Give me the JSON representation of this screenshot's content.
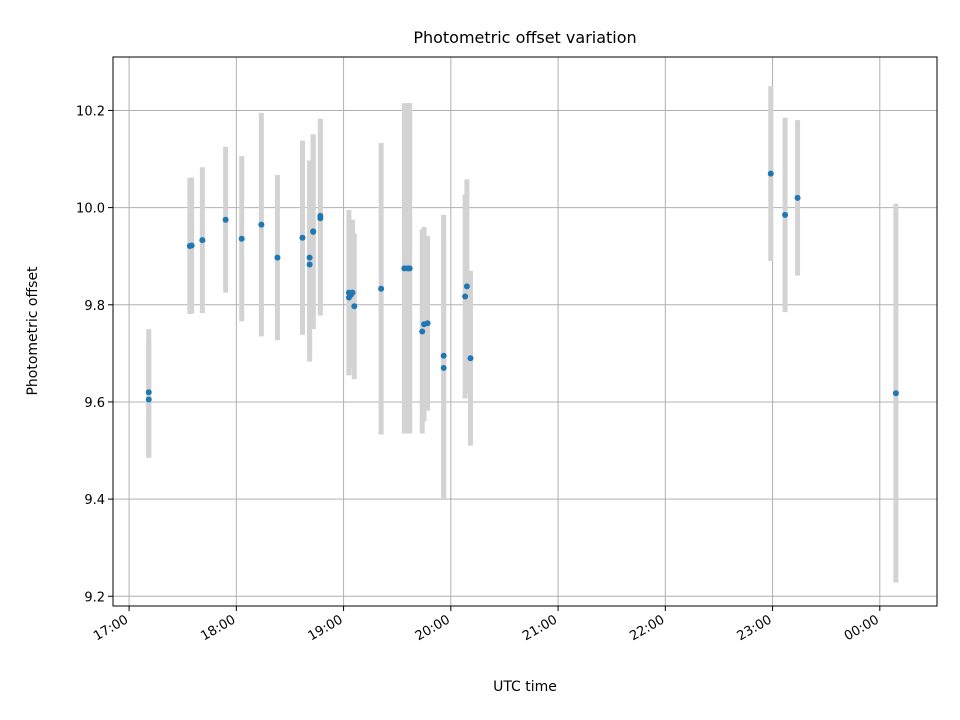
{
  "chart_data": {
    "type": "scatter",
    "title": "Photometric offset variation",
    "xlabel": "UTC time",
    "ylabel": "Photometric offset",
    "grid": true,
    "x_ticks": [
      "17:00",
      "18:00",
      "19:00",
      "20:00",
      "21:00",
      "22:00",
      "23:00",
      "00:00"
    ],
    "y_ticks": [
      "9.2",
      "9.4",
      "9.6",
      "9.8",
      "10.0",
      "10.2"
    ],
    "xlim": [
      "16:51",
      "00:32"
    ],
    "ylim": [
      9.18,
      10.31
    ],
    "colors": {
      "marker": "#1f77b4",
      "error_bar": "#d3d3d3",
      "grid": "#b0b0b0"
    },
    "series": [
      {
        "points": [
          {
            "x": "17:11",
            "y": 9.62,
            "err": 0.13
          },
          {
            "x": "17:11",
            "y": 9.605,
            "err": 0.12
          },
          {
            "x": "17:34",
            "y": 9.921,
            "err": 0.14
          },
          {
            "x": "17:35",
            "y": 9.922,
            "err": 0.14
          },
          {
            "x": "17:41",
            "y": 9.933,
            "err": 0.15
          },
          {
            "x": "17:54",
            "y": 9.975,
            "err": 0.15
          },
          {
            "x": "18:03",
            "y": 9.936,
            "err": 0.17
          },
          {
            "x": "18:14",
            "y": 9.965,
            "err": 0.23
          },
          {
            "x": "18:23",
            "y": 9.897,
            "err": 0.17
          },
          {
            "x": "18:37",
            "y": 9.938,
            "err": 0.2
          },
          {
            "x": "18:41",
            "y": 9.897,
            "err": 0.2
          },
          {
            "x": "18:41",
            "y": 9.883,
            "err": 0.2
          },
          {
            "x": "18:43",
            "y": 9.951,
            "err": 0.2
          },
          {
            "x": "18:43",
            "y": 9.95,
            "err": 0.2
          },
          {
            "x": "18:47",
            "y": 9.978,
            "err": 0.2
          },
          {
            "x": "18:47",
            "y": 9.983,
            "err": 0.2
          },
          {
            "x": "19:03",
            "y": 9.825,
            "err": 0.17
          },
          {
            "x": "19:03",
            "y": 9.815,
            "err": 0.16
          },
          {
            "x": "19:04",
            "y": 9.82,
            "err": 0.15
          },
          {
            "x": "19:05",
            "y": 9.825,
            "err": 0.15
          },
          {
            "x": "19:06",
            "y": 9.797,
            "err": 0.15
          },
          {
            "x": "19:21",
            "y": 9.833,
            "err": 0.3
          },
          {
            "x": "19:34",
            "y": 9.875,
            "err": 0.34
          },
          {
            "x": "19:36",
            "y": 9.875,
            "err": 0.34
          },
          {
            "x": "19:37",
            "y": 9.875,
            "err": 0.34
          },
          {
            "x": "19:44",
            "y": 9.745,
            "err": 0.21
          },
          {
            "x": "19:45",
            "y": 9.76,
            "err": 0.2
          },
          {
            "x": "19:47",
            "y": 9.762,
            "err": 0.18
          },
          {
            "x": "19:56",
            "y": 9.695,
            "err": 0.29
          },
          {
            "x": "19:56",
            "y": 9.67,
            "err": 0.27
          },
          {
            "x": "20:08",
            "y": 9.817,
            "err": 0.21
          },
          {
            "x": "20:09",
            "y": 9.838,
            "err": 0.22
          },
          {
            "x": "20:11",
            "y": 9.69,
            "err": 0.18
          },
          {
            "x": "22:59",
            "y": 10.07,
            "err": 0.18
          },
          {
            "x": "23:07",
            "y": 9.985,
            "err": 0.2
          },
          {
            "x": "23:14",
            "y": 10.02,
            "err": 0.16
          },
          {
            "x": "00:09",
            "y": 9.618,
            "err": 0.39
          }
        ]
      }
    ]
  }
}
